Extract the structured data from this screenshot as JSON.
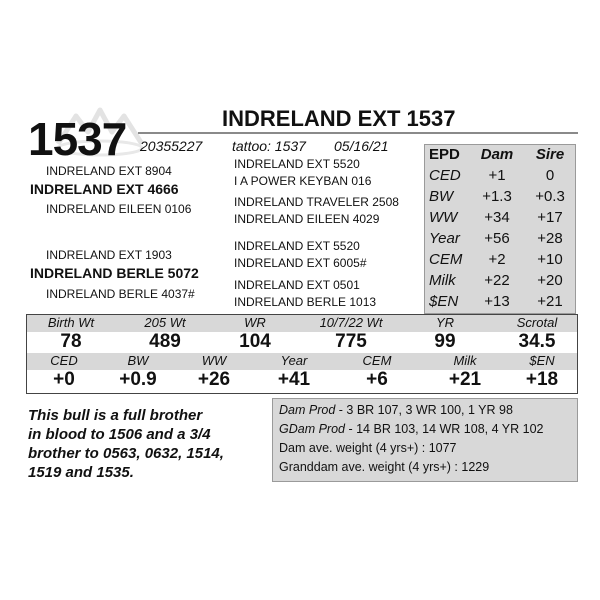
{
  "header": {
    "lot_number": "1537",
    "name": "INDRELAND EXT 1537",
    "registration": "20355227",
    "tattoo": "tattoo: 1537",
    "birth_date": "05/16/21"
  },
  "pedigree": {
    "sire": "INDRELAND EXT 4666",
    "sire_sire": "INDRELAND EXT 8904",
    "sire_dam": "INDRELAND EILEEN 0106",
    "sire_sire_sire": "INDRELAND EXT 5520",
    "sire_sire_dam": "I A POWER KEYBAN 016",
    "sire_dam_sire": "INDRELAND TRAVELER 2508",
    "sire_dam_dam": "INDRELAND EILEEN 4029",
    "dam": "INDRELAND BERLE 5072",
    "dam_sire": "INDRELAND EXT 1903",
    "dam_dam": "INDRELAND BERLE 4037#",
    "dam_sire_sire": "INDRELAND EXT 5520",
    "dam_sire_dam": "INDRELAND EXT 6005#",
    "dam_dam_sire": "INDRELAND EXT 0501",
    "dam_dam_dam": "INDRELAND BERLE 1013"
  },
  "parent_epds": {
    "headers": [
      "EPD",
      "Dam",
      "Sire"
    ],
    "rows": [
      [
        "CED",
        "+1",
        "0"
      ],
      [
        "BW",
        "+1.3",
        "+0.3"
      ],
      [
        "WW",
        "+34",
        "+17"
      ],
      [
        "Year",
        "+56",
        "+28"
      ],
      [
        "CEM",
        "+2",
        "+10"
      ],
      [
        "Milk",
        "+22",
        "+20"
      ],
      [
        "$EN",
        "+13",
        "+21"
      ]
    ]
  },
  "performance": {
    "labels": [
      "Birth Wt",
      "205 Wt",
      "WR",
      "10/7/22 Wt",
      "YR",
      "Scrotal"
    ],
    "values": [
      "78",
      "489",
      "104",
      "775",
      "99",
      "34.5"
    ]
  },
  "epds": {
    "labels": [
      "CED",
      "BW",
      "WW",
      "Year",
      "CEM",
      "Milk",
      "$EN"
    ],
    "values": [
      "+0",
      "+0.9",
      "+26",
      "+41",
      "+6",
      "+21",
      "+18"
    ]
  },
  "remarks": [
    "This bull is a full brother",
    "in blood to 1506 and a 3/4",
    "brother to 0563, 0632, 1514,",
    "1519 and 1535."
  ],
  "production": {
    "dam_prod_label": "Dam Prod",
    "dam_prod_value": " - 3 BR 107, 3 WR 100, 1 YR 98",
    "gdam_prod_label": "GDam Prod",
    "gdam_prod_value": " - 14 BR 103, 14 WR 108, 4 YR 102",
    "dam_avg_weight": "Dam ave. weight (4 yrs+) : 1077",
    "granddam_avg_weight": "Granddam ave. weight (4 yrs+) : 1229"
  }
}
